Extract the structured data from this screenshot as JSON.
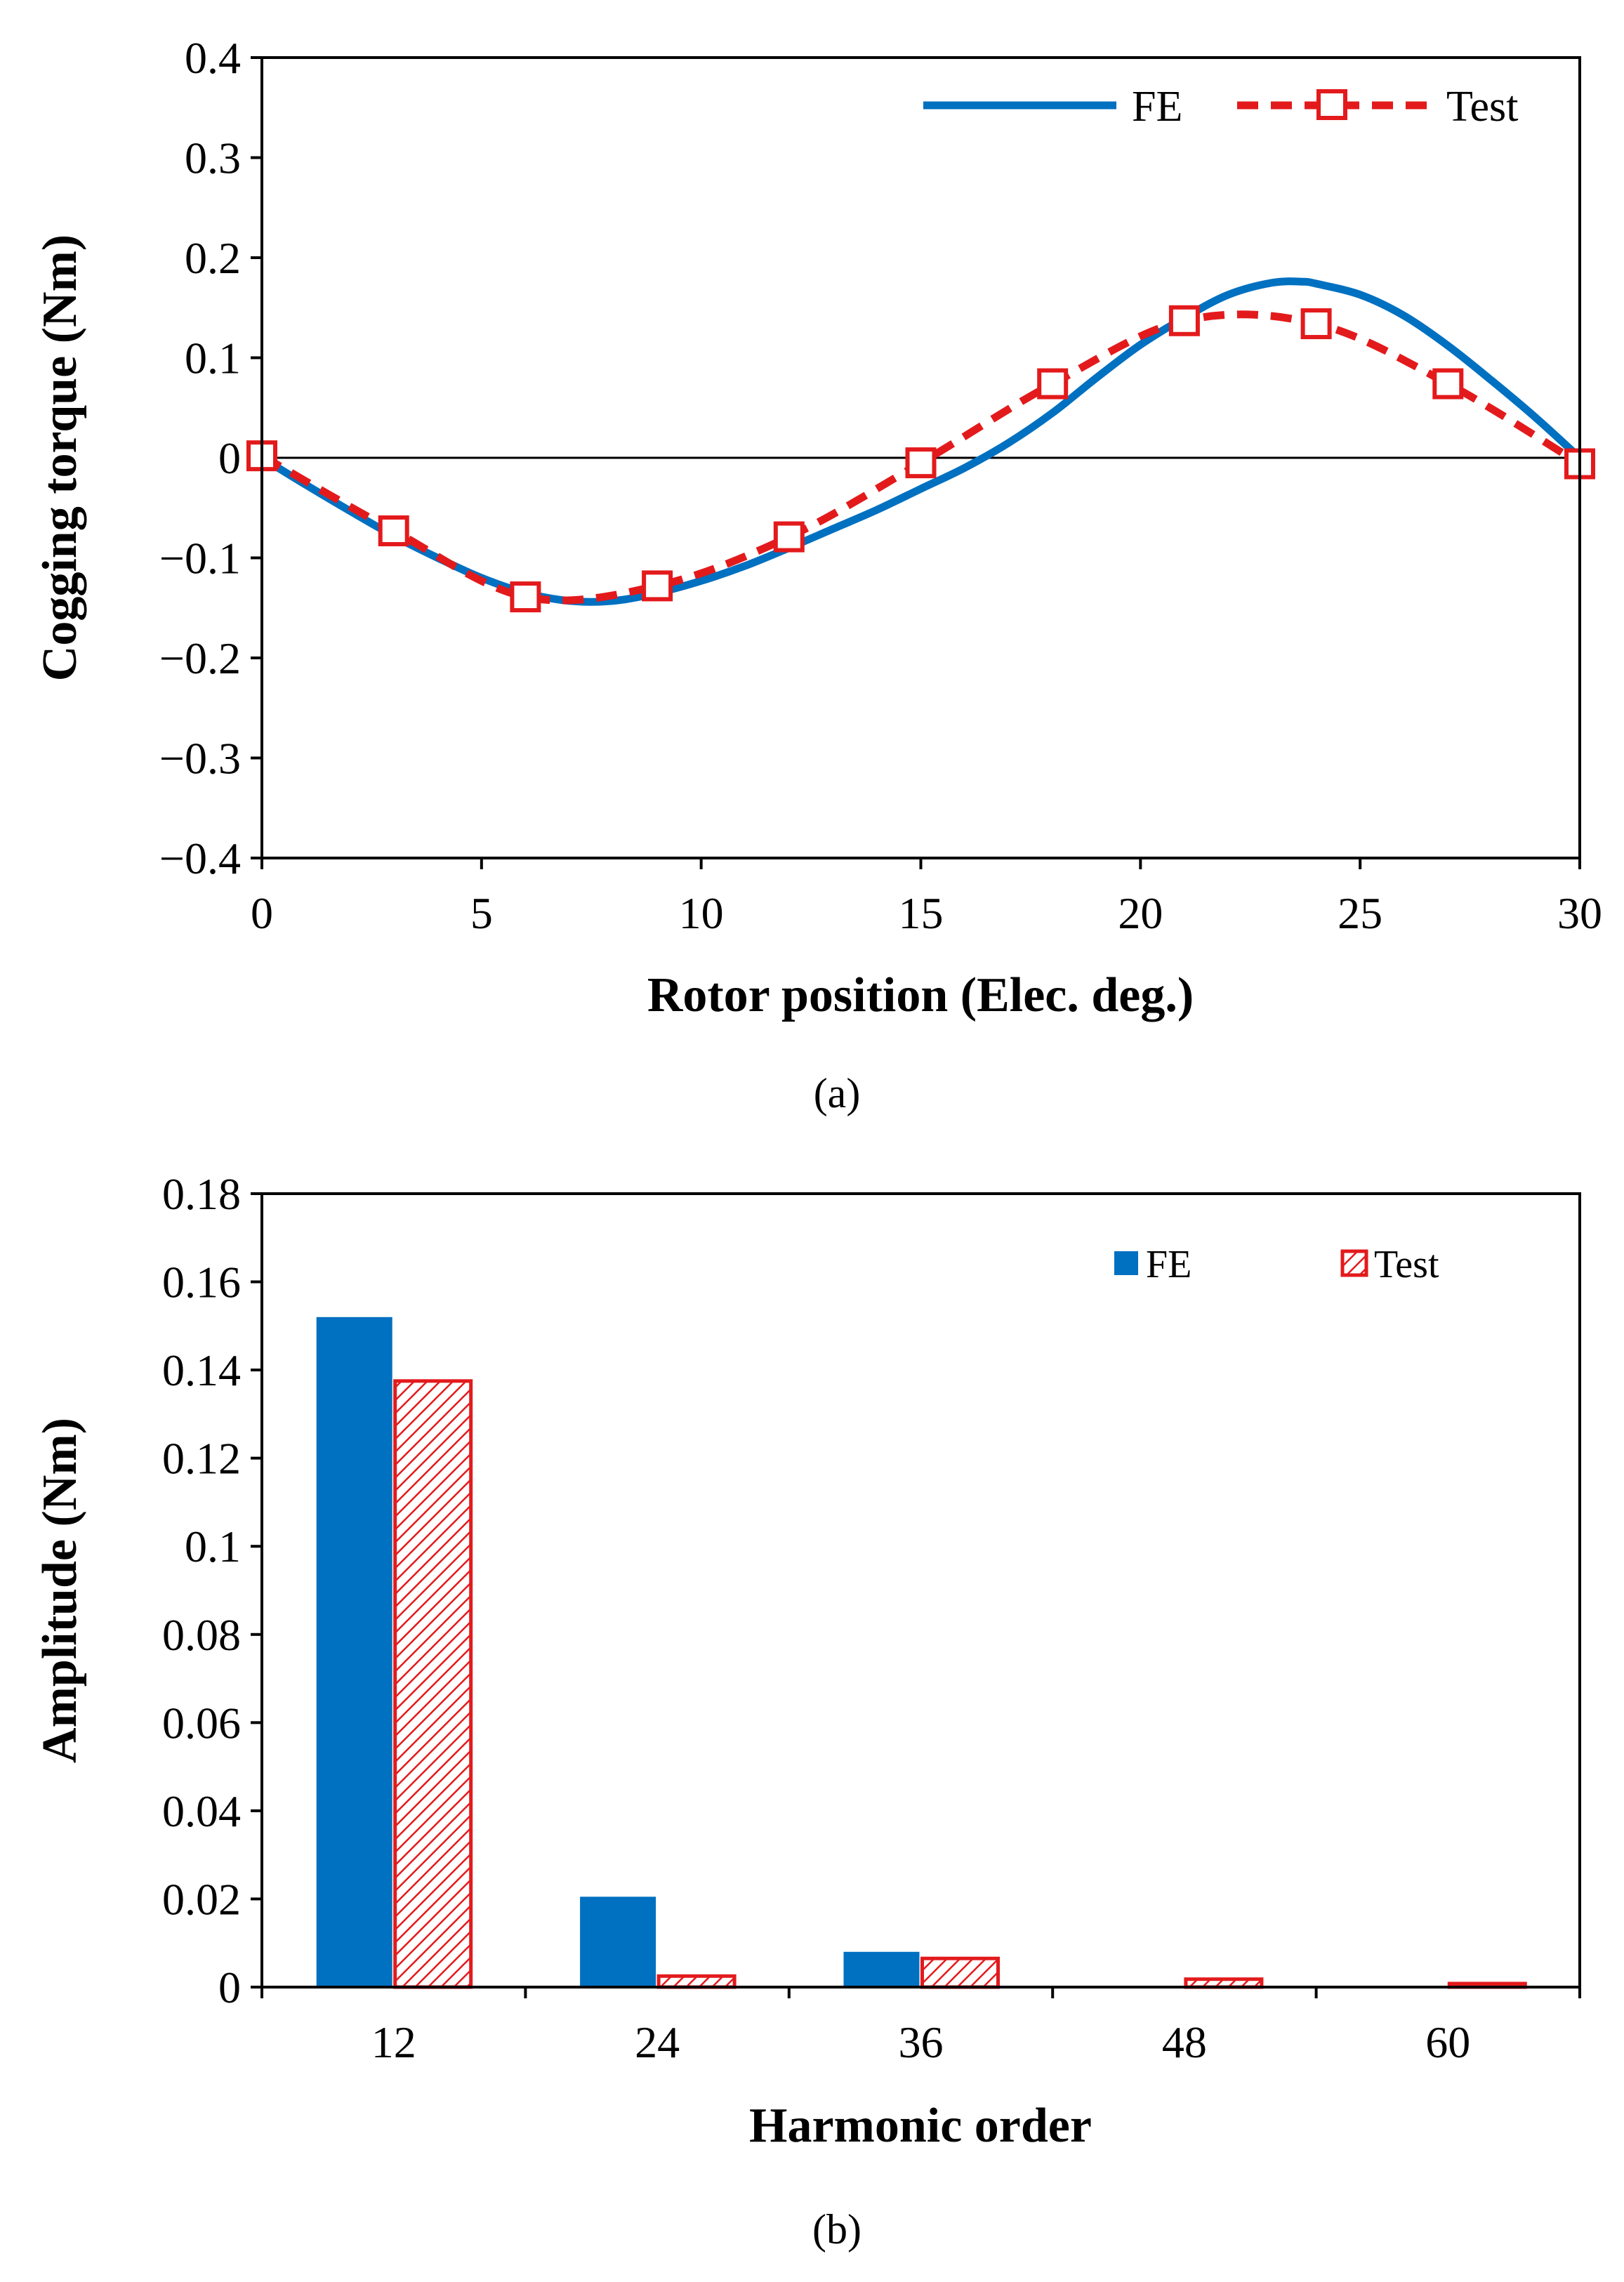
{
  "chart_data": [
    {
      "type": "line",
      "caption": "(a)",
      "xlabel": "Rotor position (Elec. deg.)",
      "ylabel": "Cogging torque (Nm)",
      "xlim": [
        0,
        30
      ],
      "ylim": [
        -0.4,
        0.4
      ],
      "xticks": [
        0,
        5,
        10,
        15,
        20,
        25,
        30
      ],
      "xtick_labels": [
        "0",
        "5",
        "10",
        "15",
        "20",
        "25",
        "30"
      ],
      "yticks": [
        0.4,
        0.3,
        0.2,
        0.1,
        0,
        -0.1,
        -0.2,
        -0.3,
        -0.4
      ],
      "ytick_labels": [
        "0.4",
        "0.3",
        "0.2",
        "0.1",
        "0",
        "−0.1",
        "−0.2",
        "−0.3",
        "−0.4"
      ],
      "legend_position": "top-right",
      "series": [
        {
          "name": "FE",
          "color": "#0070c0",
          "style": "solid",
          "x": [
            0,
            1,
            2,
            3,
            4,
            5,
            6,
            7,
            8,
            9,
            10,
            11,
            12,
            13,
            14,
            15,
            16,
            17,
            18,
            19,
            20,
            21,
            22,
            23,
            23.7,
            24,
            25,
            26,
            27,
            28,
            29,
            30
          ],
          "y": [
            0,
            -0.027,
            -0.053,
            -0.078,
            -0.1,
            -0.12,
            -0.135,
            -0.143,
            -0.143,
            -0.135,
            -0.123,
            -0.108,
            -0.09,
            -0.071,
            -0.052,
            -0.031,
            -0.01,
            0.015,
            0.045,
            0.08,
            0.113,
            0.14,
            0.163,
            0.175,
            0.176,
            0.174,
            0.163,
            0.142,
            0.112,
            0.077,
            0.04,
            0
          ]
        },
        {
          "name": "Test",
          "color": "#e31a1c",
          "style": "dashed",
          "marker": "square",
          "x": [
            0,
            3,
            6,
            9,
            12,
            15,
            18,
            21,
            24,
            27,
            30
          ],
          "y": [
            0.002,
            -0.073,
            -0.139,
            -0.128,
            -0.079,
            -0.005,
            0.074,
            0.137,
            0.134,
            0.074,
            -0.006
          ]
        }
      ]
    },
    {
      "type": "bar",
      "caption": "(b)",
      "xlabel": "Harmonic order",
      "ylabel": "Amplitude (Nm)",
      "categories": [
        "12",
        "24",
        "36",
        "48",
        "60"
      ],
      "ylim": [
        0,
        0.18
      ],
      "yticks": [
        0.18,
        0.16,
        0.14,
        0.12,
        0.1,
        0.08,
        0.06,
        0.04,
        0.02,
        0
      ],
      "ytick_labels": [
        "0.18",
        "0.16",
        "0.14",
        "0.12",
        "0.1",
        "0.08",
        "0.06",
        "0.04",
        "0.02",
        "0"
      ],
      "legend_position": "top-right",
      "series": [
        {
          "name": "FE",
          "color": "#0070c0",
          "fill": "solid",
          "values": [
            0.152,
            0.0205,
            0.008,
            0.0002,
            0.0002
          ]
        },
        {
          "name": "Test",
          "color": "#e31a1c",
          "fill": "hatched",
          "values": [
            0.1375,
            0.0025,
            0.0065,
            0.0018,
            0.0008
          ]
        }
      ]
    }
  ]
}
